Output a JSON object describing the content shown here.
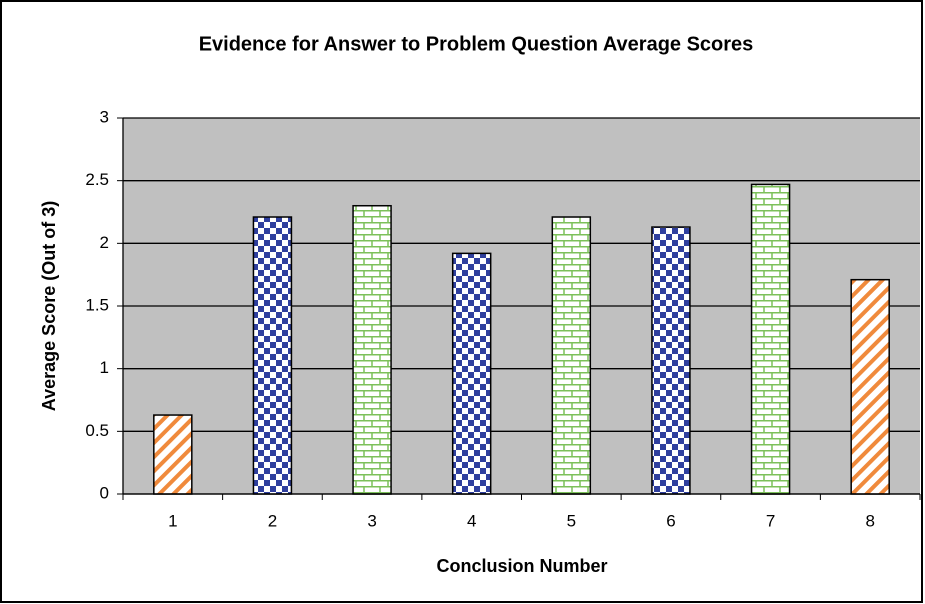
{
  "chart_data": {
    "type": "bar",
    "title": "Evidence for Answer to Problem Question Average Scores",
    "x_label": "Conclusion Number",
    "y_label": "Average Score (Out of 3)",
    "categories": [
      "1",
      "2",
      "3",
      "4",
      "5",
      "6",
      "7",
      "8"
    ],
    "values": [
      0.63,
      2.21,
      2.3,
      1.92,
      2.21,
      2.13,
      2.47,
      1.71
    ],
    "patterns": [
      "stripes",
      "checker",
      "brick",
      "checker",
      "brick",
      "checker",
      "brick",
      "stripes"
    ],
    "colors": [
      "#f08a3c",
      "#2f3f9e",
      "#7cc05a",
      "#2f3f9e",
      "#7cc05a",
      "#2f3f9e",
      "#7cc05a",
      "#f08a3c"
    ],
    "ylim": [
      0,
      3
    ],
    "yticks": [
      0,
      0.5,
      1,
      1.5,
      2,
      2.5,
      3
    ],
    "grid": true,
    "plot_background": "#c0c0c0"
  }
}
